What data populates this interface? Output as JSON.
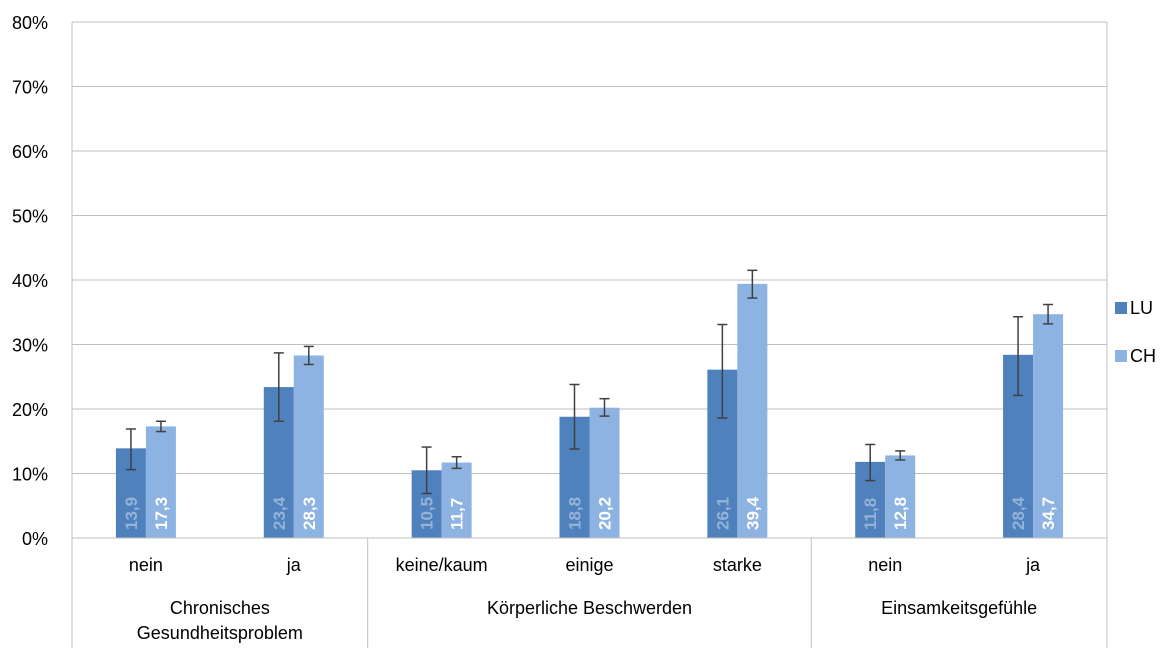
{
  "chart_data": {
    "type": "bar",
    "ylim": [
      0,
      80
    ],
    "yticks": [
      "0%",
      "10%",
      "20%",
      "30%",
      "40%",
      "50%",
      "60%",
      "70%",
      "80%"
    ],
    "grid": true,
    "legend_position": "right",
    "colors": {
      "LU": "#4F81BD",
      "CH": "#8DB3E2",
      "label_LU": "#95B3D7",
      "label_CH": "#FFFFFF",
      "grid": "#BFBFBF",
      "errorbar": "#404040"
    },
    "groups": [
      {
        "label": "Chronisches Gesundheitsproblem",
        "label_lines": [
          "Chronisches",
          "Gesundheitsproblem"
        ],
        "categories": [
          "nein",
          "ja"
        ]
      },
      {
        "label": "Körperliche Beschwerden",
        "label_lines": [
          "Körperliche Beschwerden"
        ],
        "categories": [
          "keine/kaum",
          "einige",
          "starke"
        ]
      },
      {
        "label": "Einsamkeitsgefühle",
        "label_lines": [
          "Einsamkeitsgefühle"
        ],
        "categories": [
          "nein",
          "ja"
        ]
      }
    ],
    "categories": [
      "nein",
      "ja",
      "keine/kaum",
      "einige",
      "starke",
      "nein",
      "ja"
    ],
    "series": [
      {
        "name": "LU",
        "values": [
          13.9,
          23.4,
          10.5,
          18.8,
          26.1,
          11.8,
          28.4
        ],
        "labels": [
          "13,9",
          "23,4",
          "10,5",
          "18,8",
          "26,1",
          "11,8",
          "28,4"
        ],
        "error_low": [
          10.6,
          18.1,
          6.9,
          13.8,
          18.6,
          8.9,
          22.1
        ],
        "error_high": [
          16.9,
          28.7,
          14.1,
          23.8,
          33.1,
          14.5,
          34.3
        ]
      },
      {
        "name": "CH",
        "values": [
          17.3,
          28.3,
          11.7,
          20.2,
          39.4,
          12.8,
          34.7
        ],
        "labels": [
          "17,3",
          "28,3",
          "11,7",
          "20,2",
          "39,4",
          "12,8",
          "34,7"
        ],
        "error_low": [
          16.5,
          26.9,
          10.8,
          18.9,
          37.2,
          12.1,
          33.2
        ],
        "error_high": [
          18.1,
          29.7,
          12.6,
          21.6,
          41.5,
          13.5,
          36.2
        ]
      }
    ]
  }
}
